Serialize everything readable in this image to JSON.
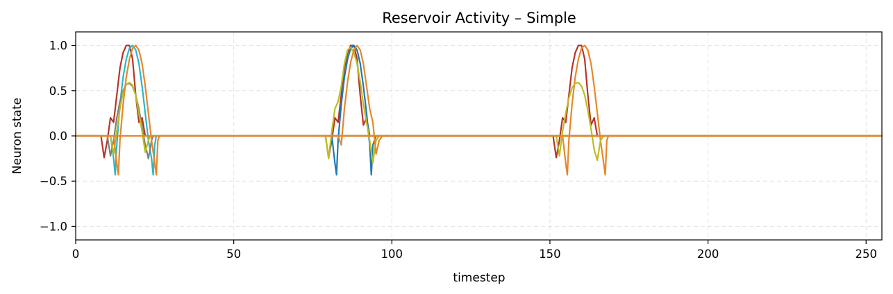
{
  "chart_data": {
    "type": "line",
    "title": "Reservoir Activity – Simple",
    "xlabel": "timestep",
    "ylabel": "Neuron state",
    "xlim": [
      0,
      255
    ],
    "ylim": [
      -1.15,
      1.15
    ],
    "xticks": [
      0,
      50,
      100,
      150,
      200,
      250
    ],
    "xtick_labels": [
      "0",
      "50",
      "100",
      "150",
      "200",
      "250"
    ],
    "yticks": [
      -1.0,
      -0.5,
      0.0,
      0.5,
      1.0
    ],
    "ytick_labels": [
      "−1.0",
      "−0.5",
      "0.0",
      "0.5",
      "1.0"
    ],
    "grid": true,
    "legend": "none",
    "series": [
      {
        "color": "#b5342b",
        "points": [
          [
            0,
            0
          ],
          [
            8,
            0
          ],
          [
            9,
            -0.24
          ],
          [
            10,
            -0.05
          ],
          [
            11,
            0.2
          ],
          [
            12,
            0.15
          ],
          [
            13,
            0.45
          ],
          [
            14,
            0.75
          ],
          [
            15,
            0.92
          ],
          [
            16,
            1.0
          ],
          [
            17,
            1.0
          ],
          [
            18,
            0.85
          ],
          [
            19,
            0.45
          ],
          [
            20,
            0.15
          ],
          [
            21,
            0.2
          ],
          [
            22,
            0
          ],
          [
            255,
            0
          ],
          [
            79,
            0
          ],
          [
            79,
            0
          ],
          [
            255,
            0
          ]
        ]
      },
      {
        "color": "#b5342b",
        "points": [
          [
            76,
            0
          ],
          [
            79,
            0
          ],
          [
            80,
            -0.24
          ],
          [
            81,
            -0.05
          ],
          [
            82,
            0.2
          ],
          [
            83,
            0.15
          ],
          [
            84,
            0.45
          ],
          [
            85,
            0.75
          ],
          [
            86,
            0.92
          ],
          [
            87,
            1.0
          ],
          [
            88,
            1.0
          ],
          [
            89,
            0.85
          ],
          [
            90,
            0.45
          ],
          [
            91,
            0.12
          ],
          [
            92,
            0.2
          ],
          [
            93,
            0
          ],
          [
            255,
            0
          ]
        ]
      },
      {
        "color": "#b5342b",
        "points": [
          [
            148,
            0
          ],
          [
            151,
            0
          ],
          [
            152,
            -0.24
          ],
          [
            153,
            -0.05
          ],
          [
            154,
            0.2
          ],
          [
            155,
            0.15
          ],
          [
            156,
            0.45
          ],
          [
            157,
            0.75
          ],
          [
            158,
            0.92
          ],
          [
            159,
            1.0
          ],
          [
            160,
            1.0
          ],
          [
            161,
            0.85
          ],
          [
            162,
            0.45
          ],
          [
            163,
            0.12
          ],
          [
            164,
            0.2
          ],
          [
            165,
            0
          ],
          [
            255,
            0
          ]
        ]
      },
      {
        "color": "#2ab7c9",
        "points": [
          [
            0,
            0
          ],
          [
            11,
            0
          ],
          [
            12,
            -0.25
          ],
          [
            12.5,
            -0.43
          ],
          [
            13,
            -0.1
          ],
          [
            14,
            0.35
          ],
          [
            15,
            0.65
          ],
          [
            16,
            0.85
          ],
          [
            17,
            0.97
          ],
          [
            18,
            1.0
          ],
          [
            19,
            0.95
          ],
          [
            20,
            0.8
          ],
          [
            21,
            0.55
          ],
          [
            22,
            0.25
          ],
          [
            23,
            -0.05
          ],
          [
            24,
            -0.25
          ],
          [
            24.5,
            -0.43
          ],
          [
            25,
            -0.1
          ],
          [
            25.5,
            0
          ],
          [
            255,
            0
          ]
        ]
      },
      {
        "color": "#7f7f7f",
        "points": [
          [
            0,
            0
          ],
          [
            10,
            0
          ],
          [
            11,
            -0.22
          ],
          [
            12,
            -0.05
          ],
          [
            13,
            0.2
          ],
          [
            14,
            0.38
          ],
          [
            15,
            0.5
          ],
          [
            16,
            0.57
          ],
          [
            17,
            0.58
          ],
          [
            18,
            0.55
          ],
          [
            19,
            0.45
          ],
          [
            20,
            0.3
          ],
          [
            21,
            0.1
          ],
          [
            22,
            -0.1
          ],
          [
            23,
            -0.25
          ],
          [
            24,
            -0.05
          ],
          [
            24.5,
            0
          ],
          [
            255,
            0
          ]
        ]
      },
      {
        "color": "#bcbd22",
        "points": [
          [
            0,
            0
          ],
          [
            11,
            0
          ],
          [
            12,
            -0.2
          ],
          [
            13,
            0.05
          ],
          [
            14,
            0.3
          ],
          [
            15,
            0.48
          ],
          [
            16,
            0.57
          ],
          [
            17,
            0.59
          ],
          [
            18,
            0.56
          ],
          [
            19,
            0.45
          ],
          [
            20,
            0.25
          ],
          [
            21,
            0.05
          ],
          [
            22,
            -0.18
          ],
          [
            23,
            -0.05
          ],
          [
            23.5,
            0
          ],
          [
            255,
            0
          ]
        ]
      },
      {
        "color": "#e8862a",
        "points": [
          [
            0,
            0
          ],
          [
            12,
            0
          ],
          [
            13,
            -0.3
          ],
          [
            13.5,
            -0.43
          ],
          [
            14,
            -0.05
          ],
          [
            15,
            0.35
          ],
          [
            16,
            0.65
          ],
          [
            17,
            0.85
          ],
          [
            18,
            0.97
          ],
          [
            19,
            1.0
          ],
          [
            20,
            0.95
          ],
          [
            21,
            0.8
          ],
          [
            22,
            0.55
          ],
          [
            23,
            0.25
          ],
          [
            24,
            -0.05
          ],
          [
            25,
            -0.3
          ],
          [
            25.5,
            -0.43
          ],
          [
            26,
            -0.05
          ],
          [
            26.5,
            0
          ],
          [
            255,
            0
          ]
        ]
      },
      {
        "color": "#2178b4",
        "points": [
          [
            80,
            0
          ],
          [
            81,
            0
          ],
          [
            82,
            -0.3
          ],
          [
            82.5,
            -0.43
          ],
          [
            83,
            -0.05
          ],
          [
            84,
            0.35
          ],
          [
            85,
            0.65
          ],
          [
            86,
            0.85
          ],
          [
            87,
            0.97
          ],
          [
            88,
            1.0
          ],
          [
            89,
            0.95
          ],
          [
            90,
            0.8
          ],
          [
            91,
            0.55
          ],
          [
            92,
            0.25
          ],
          [
            93,
            -0.1
          ],
          [
            93.5,
            -0.43
          ],
          [
            94,
            -0.1
          ],
          [
            95,
            0
          ],
          [
            255,
            0
          ]
        ]
      },
      {
        "color": "#bcbd22",
        "points": [
          [
            78,
            0
          ],
          [
            79,
            0
          ],
          [
            80,
            -0.25
          ],
          [
            81,
            0.05
          ],
          [
            82,
            0.3
          ],
          [
            83,
            0.38
          ],
          [
            84,
            0.55
          ],
          [
            85,
            0.8
          ],
          [
            86,
            0.95
          ],
          [
            87,
            0.98
          ],
          [
            88,
            0.92
          ],
          [
            89,
            0.8
          ],
          [
            90,
            0.6
          ],
          [
            91,
            0.35
          ],
          [
            92,
            0.15
          ],
          [
            93,
            -0.05
          ],
          [
            94,
            -0.3
          ],
          [
            95,
            -0.05
          ],
          [
            96,
            0
          ],
          [
            255,
            0
          ]
        ]
      },
      {
        "color": "#e8862a",
        "points": [
          [
            82,
            0
          ],
          [
            83,
            0
          ],
          [
            84,
            -0.1
          ],
          [
            85,
            0.3
          ],
          [
            86,
            0.6
          ],
          [
            87,
            0.82
          ],
          [
            88,
            0.95
          ],
          [
            89,
            1.0
          ],
          [
            90,
            0.95
          ],
          [
            91,
            0.8
          ],
          [
            92,
            0.55
          ],
          [
            93,
            0.3
          ],
          [
            94,
            0.15
          ],
          [
            95,
            -0.2
          ],
          [
            96,
            -0.05
          ],
          [
            97,
            0
          ],
          [
            255,
            0
          ]
        ]
      },
      {
        "color": "#e8862a",
        "points": [
          [
            152,
            0
          ],
          [
            154,
            0
          ],
          [
            155,
            -0.3
          ],
          [
            155.5,
            -0.43
          ],
          [
            156,
            -0.05
          ],
          [
            157,
            0.35
          ],
          [
            158,
            0.65
          ],
          [
            159,
            0.85
          ],
          [
            160,
            0.97
          ],
          [
            161,
            1.0
          ],
          [
            162,
            0.95
          ],
          [
            163,
            0.8
          ],
          [
            164,
            0.55
          ],
          [
            165,
            0.25
          ],
          [
            166,
            -0.05
          ],
          [
            167,
            -0.3
          ],
          [
            167.5,
            -0.43
          ],
          [
            168,
            -0.05
          ],
          [
            168.5,
            0
          ],
          [
            255,
            0
          ]
        ]
      },
      {
        "color": "#bcbd22",
        "points": [
          [
            150,
            0
          ],
          [
            152,
            0
          ],
          [
            153,
            -0.22
          ],
          [
            154,
            0.05
          ],
          [
            155,
            0.25
          ],
          [
            156,
            0.42
          ],
          [
            157,
            0.53
          ],
          [
            158,
            0.58
          ],
          [
            159,
            0.59
          ],
          [
            160,
            0.55
          ],
          [
            161,
            0.45
          ],
          [
            162,
            0.28
          ],
          [
            163,
            0.08
          ],
          [
            164,
            -0.15
          ],
          [
            165,
            -0.27
          ],
          [
            166,
            -0.05
          ],
          [
            167,
            0
          ],
          [
            255,
            0
          ]
        ]
      },
      {
        "color": "#e8862a",
        "points": [
          [
            0,
            0
          ],
          [
            255,
            0
          ]
        ]
      }
    ]
  }
}
